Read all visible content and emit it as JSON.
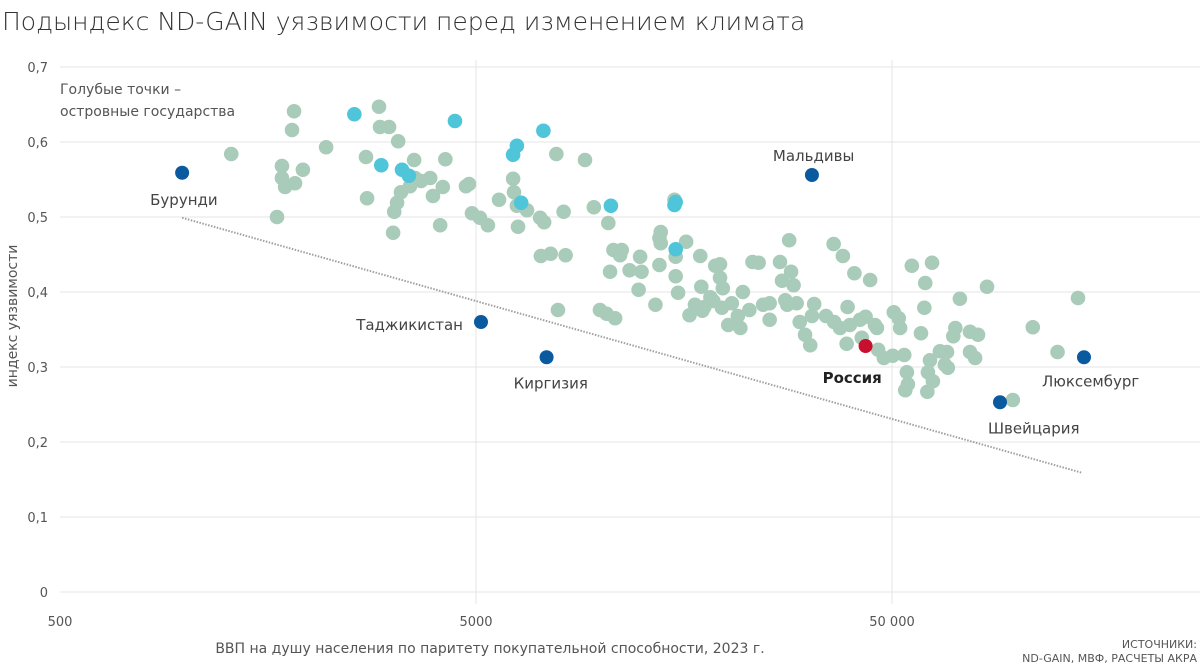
{
  "chart_data": {
    "type": "scatter",
    "title": "Подындекс ND-GAIN уязвимости перед изменением климата",
    "xlabel": "ВВП на душу населения по паритету покупательной способности, 2023 г.",
    "ylabel": "индекс уязвимости",
    "x_scale": "log",
    "xlim": [
      500,
      275000
    ],
    "ylim": [
      0,
      0.7
    ],
    "x_ticks": [
      {
        "value": 500,
        "label": "500"
      },
      {
        "value": 5000,
        "label": "5000"
      },
      {
        "value": 50000,
        "label": "50 000"
      }
    ],
    "y_ticks": [
      {
        "value": 0,
        "label": "0"
      },
      {
        "value": 0.1,
        "label": "0,1"
      },
      {
        "value": 0.2,
        "label": "0,2"
      },
      {
        "value": 0.3,
        "label": "0,3"
      },
      {
        "value": 0.4,
        "label": "0,4"
      },
      {
        "value": 0.5,
        "label": "0,5"
      },
      {
        "value": 0.6,
        "label": "0,6"
      },
      {
        "value": 0.7,
        "label": "0,7"
      }
    ],
    "grid": true,
    "annotation": [
      "Голубые точки –",
      "островные государства"
    ],
    "sources": [
      "ИСТОЧНИКИ:",
      "ND-GAIN, МВФ, РАСЧЕТЫ АКРА"
    ],
    "colors": {
      "other": "#a9cbb9",
      "island": "#4ec5d8",
      "highlight": "#0b5aa0",
      "russia": "#c8102e",
      "trend": "#a0a0a0"
    },
    "trendline": [
      {
        "x": 983,
        "y": 0.499
      },
      {
        "x": 143000,
        "y": 0.159
      }
    ],
    "labeled_points": [
      {
        "name": "Бурунди",
        "x": 983,
        "y": 0.559
      },
      {
        "name": "Таджикистан",
        "x": 5140,
        "y": 0.36
      },
      {
        "name": "Киргизия",
        "x": 7390,
        "y": 0.313
      },
      {
        "name": "Мальдивы",
        "x": 32100,
        "y": 0.556
      },
      {
        "name": "Россия",
        "x": 43200,
        "y": 0.328
      },
      {
        "name": "Швейцария",
        "x": 90900,
        "y": 0.253
      },
      {
        "name": "Люксембург",
        "x": 144700,
        "y": 0.313
      }
    ],
    "island_points": [
      [
        2550,
        0.637
      ],
      [
        2960,
        0.569
      ],
      [
        3320,
        0.563
      ],
      [
        3450,
        0.555
      ],
      [
        4450,
        0.628
      ],
      [
        6140,
        0.583
      ],
      [
        6270,
        0.595
      ],
      [
        6420,
        0.519
      ],
      [
        7260,
        0.615
      ],
      [
        10550,
        0.515
      ],
      [
        15100,
        0.52
      ],
      [
        15100,
        0.457
      ],
      [
        15000,
        0.516
      ]
    ],
    "other_points": [
      [
        1290,
        0.584
      ],
      [
        1662,
        0.5
      ],
      [
        1708,
        0.568
      ],
      [
        1708,
        0.552
      ],
      [
        1738,
        0.54
      ],
      [
        1806,
        0.616
      ],
      [
        1826,
        0.641
      ],
      [
        1836,
        0.545
      ],
      [
        1918,
        0.563
      ],
      [
        2181,
        0.593
      ],
      [
        2736,
        0.525
      ],
      [
        2720,
        0.58
      ],
      [
        2923,
        0.647
      ],
      [
        2939,
        0.62
      ],
      [
        3090,
        0.62
      ],
      [
        3180,
        0.507
      ],
      [
        3230,
        0.519
      ],
      [
        3160,
        0.479
      ],
      [
        3250,
        0.601
      ],
      [
        3300,
        0.533
      ],
      [
        3470,
        0.541
      ],
      [
        3550,
        0.576
      ],
      [
        3570,
        0.552
      ],
      [
        3690,
        0.548
      ],
      [
        3880,
        0.552
      ],
      [
        3940,
        0.528
      ],
      [
        4100,
        0.489
      ],
      [
        4220,
        0.577
      ],
      [
        4160,
        0.54
      ],
      [
        4730,
        0.541
      ],
      [
        4810,
        0.544
      ],
      [
        4890,
        0.505
      ],
      [
        5110,
        0.499
      ],
      [
        5340,
        0.489
      ],
      [
        5680,
        0.523
      ],
      [
        6140,
        0.551
      ],
      [
        6170,
        0.533
      ],
      [
        6270,
        0.515
      ],
      [
        6310,
        0.487
      ],
      [
        6630,
        0.509
      ],
      [
        7130,
        0.499
      ],
      [
        7160,
        0.448
      ],
      [
        7290,
        0.493
      ],
      [
        7560,
        0.451
      ],
      [
        7800,
        0.584
      ],
      [
        7870,
        0.376
      ],
      [
        8210,
        0.449
      ],
      [
        8120,
        0.507
      ],
      [
        9140,
        0.576
      ],
      [
        9600,
        0.513
      ],
      [
        9930,
        0.376
      ],
      [
        10400,
        0.492
      ],
      [
        10500,
        0.427
      ],
      [
        10300,
        0.371
      ],
      [
        10800,
        0.365
      ],
      [
        10700,
        0.456
      ],
      [
        11100,
        0.449
      ],
      [
        11200,
        0.456
      ],
      [
        11700,
        0.429
      ],
      [
        12300,
        0.403
      ],
      [
        12400,
        0.447
      ],
      [
        12500,
        0.427
      ],
      [
        13500,
        0.383
      ],
      [
        13800,
        0.436
      ],
      [
        13800,
        0.472
      ],
      [
        13900,
        0.48
      ],
      [
        13900,
        0.465
      ],
      [
        15000,
        0.523
      ],
      [
        15100,
        0.447
      ],
      [
        15100,
        0.421
      ],
      [
        15300,
        0.399
      ],
      [
        16000,
        0.467
      ],
      [
        16300,
        0.369
      ],
      [
        16800,
        0.383
      ],
      [
        17300,
        0.448
      ],
      [
        17400,
        0.407
      ],
      [
        17500,
        0.375
      ],
      [
        17700,
        0.38
      ],
      [
        18600,
        0.388
      ],
      [
        18300,
        0.393
      ],
      [
        18800,
        0.435
      ],
      [
        19300,
        0.437
      ],
      [
        19300,
        0.419
      ],
      [
        19600,
        0.405
      ],
      [
        20200,
        0.356
      ],
      [
        19500,
        0.379
      ],
      [
        20600,
        0.385
      ],
      [
        21300,
        0.368
      ],
      [
        21900,
        0.4
      ],
      [
        21600,
        0.352
      ],
      [
        22700,
        0.376
      ],
      [
        23100,
        0.44
      ],
      [
        23900,
        0.439
      ],
      [
        24500,
        0.383
      ],
      [
        25400,
        0.385
      ],
      [
        25400,
        0.363
      ],
      [
        26900,
        0.44
      ],
      [
        27200,
        0.415
      ],
      [
        27700,
        0.389
      ],
      [
        28000,
        0.383
      ],
      [
        28300,
        0.469
      ],
      [
        28600,
        0.427
      ],
      [
        29000,
        0.409
      ],
      [
        29500,
        0.385
      ],
      [
        30000,
        0.36
      ],
      [
        30900,
        0.343
      ],
      [
        31800,
        0.329
      ],
      [
        32100,
        0.368
      ],
      [
        32500,
        0.384
      ],
      [
        34700,
        0.368
      ],
      [
        36200,
        0.464
      ],
      [
        36300,
        0.36
      ],
      [
        37500,
        0.352
      ],
      [
        38100,
        0.448
      ],
      [
        38900,
        0.331
      ],
      [
        39100,
        0.38
      ],
      [
        39600,
        0.356
      ],
      [
        40600,
        0.425
      ],
      [
        41900,
        0.363
      ],
      [
        42300,
        0.339
      ],
      [
        43200,
        0.367
      ],
      [
        44300,
        0.416
      ],
      [
        45500,
        0.356
      ],
      [
        46300,
        0.323
      ],
      [
        46000,
        0.352
      ],
      [
        47800,
        0.312
      ],
      [
        50200,
        0.315
      ],
      [
        50500,
        0.373
      ],
      [
        51900,
        0.365
      ],
      [
        52300,
        0.352
      ],
      [
        53500,
        0.316
      ],
      [
        54300,
        0.293
      ],
      [
        53800,
        0.269
      ],
      [
        54600,
        0.277
      ],
      [
        55800,
        0.435
      ],
      [
        58700,
        0.345
      ],
      [
        59800,
        0.379
      ],
      [
        60100,
        0.412
      ],
      [
        61000,
        0.293
      ],
      [
        60800,
        0.267
      ],
      [
        61700,
        0.309
      ],
      [
        62400,
        0.439
      ],
      [
        62700,
        0.281
      ],
      [
        65200,
        0.321
      ],
      [
        67800,
        0.32
      ],
      [
        67000,
        0.303
      ],
      [
        68100,
        0.299
      ],
      [
        70200,
        0.341
      ],
      [
        71000,
        0.352
      ],
      [
        72800,
        0.391
      ],
      [
        77000,
        0.32
      ],
      [
        77000,
        0.347
      ],
      [
        79200,
        0.312
      ],
      [
        80500,
        0.343
      ],
      [
        84600,
        0.407
      ],
      [
        97600,
        0.256
      ],
      [
        109000,
        0.353
      ],
      [
        125000,
        0.32
      ],
      [
        140000,
        0.392
      ]
    ]
  }
}
